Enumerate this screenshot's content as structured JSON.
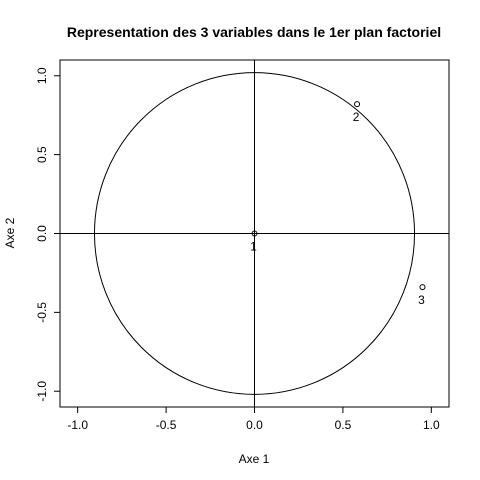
{
  "chart_data": {
    "type": "scatter",
    "title": "Representation des 3 variables dans le 1er plan factoriel",
    "xlabel": "Axe 1",
    "ylabel": "Axe 2",
    "xlim": [
      -1.1,
      1.1
    ],
    "ylim": [
      -1.1,
      1.1
    ],
    "xticks": [
      -1.0,
      -0.5,
      0.0,
      0.5,
      1.0
    ],
    "yticks": [
      -1.0,
      -0.5,
      0.0,
      0.5,
      1.0
    ],
    "xtick_labels": [
      "-1.0",
      "-0.5",
      "0.0",
      "0.5",
      "1.0"
    ],
    "ytick_labels": [
      "-1.0",
      "-0.5",
      "0.0",
      "0.5",
      "1.0"
    ],
    "grid": false,
    "reference_lines": {
      "x": 0,
      "y": 0
    },
    "circle": {
      "center": [
        0,
        0
      ],
      "radius": 1
    },
    "points": [
      {
        "label": "1",
        "x": 0.0,
        "y": 0.0
      },
      {
        "label": "2",
        "x": 0.58,
        "y": 0.82
      },
      {
        "label": "3",
        "x": 0.95,
        "y": -0.34
      }
    ]
  }
}
